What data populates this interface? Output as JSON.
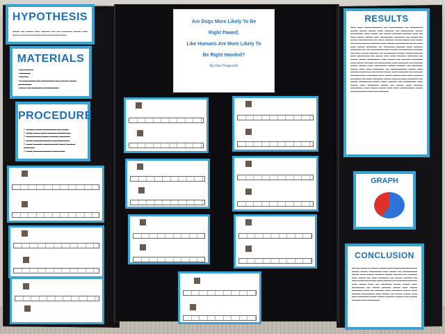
{
  "board": {
    "title_lines": [
      "Are Dogs More Likely To Be",
      "Right Pawed,",
      "Like Humans Are More Likely To",
      "Be Right Handed?"
    ],
    "author": "By Dax Drogevold"
  },
  "sections": {
    "hypothesis": {
      "heading": "HYPOTHESIS"
    },
    "materials": {
      "heading": "MATERIALS"
    },
    "procedure": {
      "heading": "PROCEDURE"
    },
    "results": {
      "heading": "RESULTS"
    },
    "graph": {
      "heading": "GRAPH"
    },
    "conclusion": {
      "heading": "CONCLUSION"
    }
  },
  "graph": {
    "slice_colors": [
      "#2e73d6",
      "#e03129"
    ]
  },
  "colors": {
    "accent_border": "#3aa3d4",
    "heading_text": "#1f6fb5",
    "board": "#121214"
  }
}
